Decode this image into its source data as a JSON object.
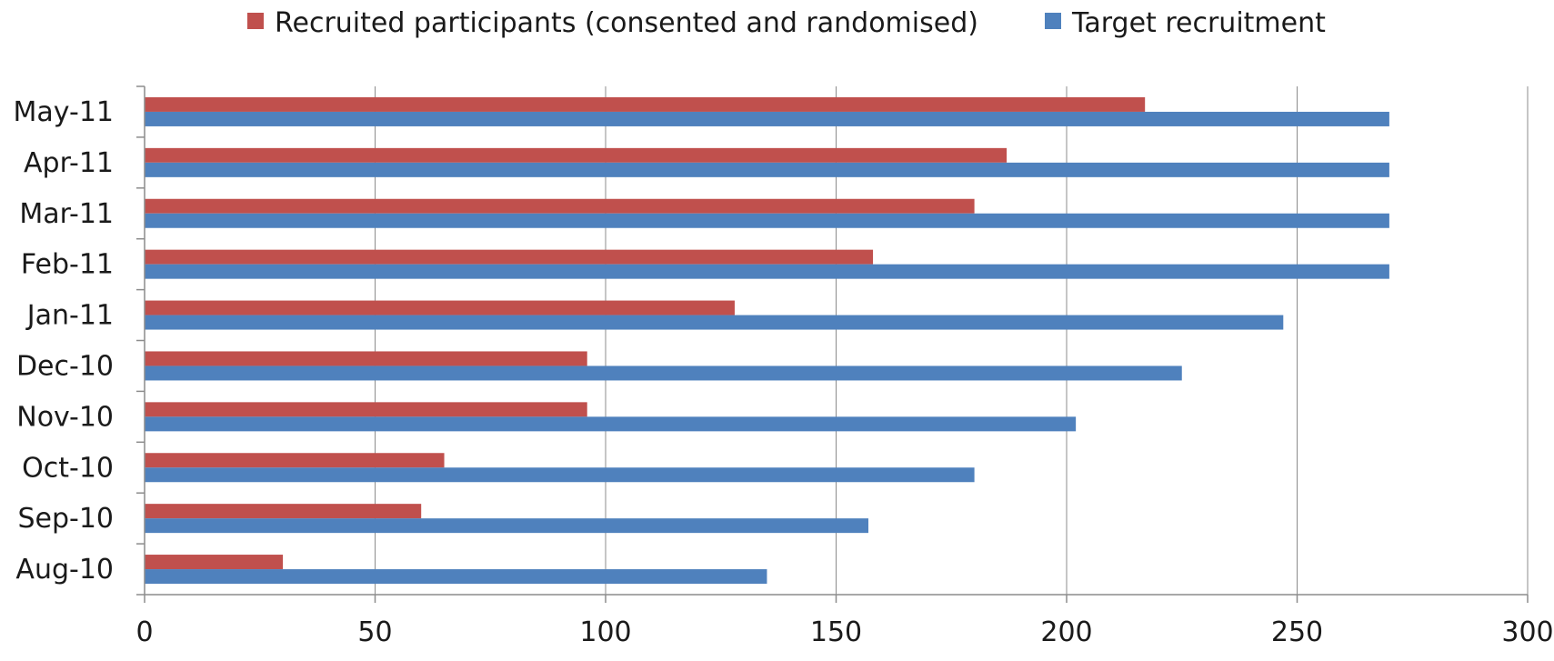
{
  "chart_data": {
    "type": "bar",
    "orientation": "horizontal",
    "title": "",
    "xlabel": "",
    "ylabel": "",
    "categories": [
      "Aug-10",
      "Sep-10",
      "Oct-10",
      "Nov-10",
      "Dec-10",
      "Jan-11",
      "Feb-11",
      "Mar-11",
      "Apr-11",
      "May-11"
    ],
    "series": [
      {
        "name": "Recruited participants (consented and randomised)",
        "color": "#C0504D",
        "values": [
          30,
          60,
          65,
          96,
          96,
          128,
          158,
          180,
          187,
          217
        ]
      },
      {
        "name": "Target recruitment",
        "color": "#4F81BD",
        "values": [
          135,
          157,
          180,
          202,
          225,
          247,
          270,
          270,
          270,
          270
        ]
      }
    ],
    "xlim": [
      0,
      300
    ],
    "x_ticks": [
      0,
      50,
      100,
      150,
      200,
      250,
      300
    ],
    "grid": "vertical major gridlines",
    "legend_position": "top"
  }
}
